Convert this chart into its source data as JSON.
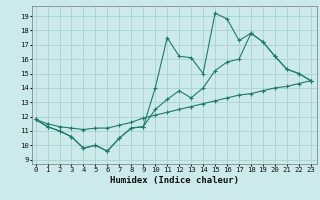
{
  "xlabel": "Humidex (Indice chaleur)",
  "bg_color": "#cceaea",
  "line_color": "#1e7b6b",
  "grid_color": "#aed4d4",
  "x_ticks": [
    0,
    1,
    2,
    3,
    4,
    5,
    6,
    7,
    8,
    9,
    10,
    11,
    12,
    13,
    14,
    15,
    16,
    17,
    18,
    19,
    20,
    21,
    22,
    23
  ],
  "y_ticks": [
    9,
    10,
    11,
    12,
    13,
    14,
    15,
    16,
    17,
    18,
    19
  ],
  "xlim": [
    -0.3,
    23.5
  ],
  "ylim": [
    8.7,
    19.7
  ],
  "series": [
    {
      "x": [
        0,
        1,
        2,
        3,
        4,
        5,
        6,
        7,
        8,
        9,
        10,
        11,
        12,
        13,
        14,
        15,
        16,
        17,
        18,
        19,
        20,
        21,
        22,
        23
      ],
      "y": [
        11.8,
        11.3,
        11.0,
        10.6,
        9.8,
        10.0,
        9.6,
        10.5,
        11.2,
        11.3,
        12.5,
        13.2,
        13.8,
        13.3,
        14.0,
        15.2,
        15.8,
        16.0,
        17.8,
        17.2,
        16.2,
        15.3,
        15.0,
        14.5
      ]
    },
    {
      "x": [
        0,
        1,
        2,
        3,
        4,
        5,
        6,
        7,
        8,
        9,
        10,
        11,
        12,
        13,
        14,
        15,
        16,
        17,
        18,
        19,
        20,
        21,
        22,
        23
      ],
      "y": [
        11.8,
        11.3,
        11.0,
        10.6,
        9.8,
        10.0,
        9.6,
        10.5,
        11.2,
        11.3,
        14.0,
        17.5,
        16.2,
        16.1,
        15.0,
        19.2,
        18.8,
        17.3,
        17.8,
        17.2,
        16.2,
        15.3,
        15.0,
        14.5
      ]
    },
    {
      "x": [
        0,
        1,
        2,
        3,
        4,
        5,
        6,
        7,
        8,
        9,
        10,
        11,
        12,
        13,
        14,
        15,
        16,
        17,
        18,
        19,
        20,
        21,
        22,
        23
      ],
      "y": [
        11.8,
        11.5,
        11.3,
        11.2,
        11.1,
        11.2,
        11.2,
        11.4,
        11.6,
        11.9,
        12.1,
        12.3,
        12.5,
        12.7,
        12.9,
        13.1,
        13.3,
        13.5,
        13.6,
        13.8,
        14.0,
        14.1,
        14.3,
        14.5
      ]
    }
  ]
}
